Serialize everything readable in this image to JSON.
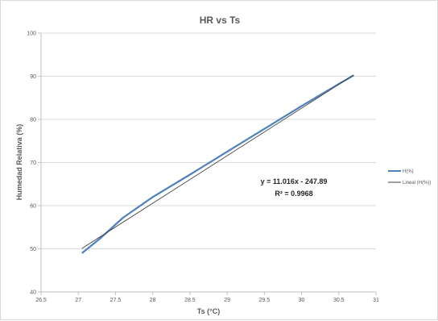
{
  "chart_data": {
    "type": "line",
    "title": "HR vs Ts",
    "xlabel": "Ts (°C)",
    "ylabel": "Humedad Relativa (%)",
    "xlim": [
      26.5,
      31
    ],
    "ylim": [
      40,
      100
    ],
    "x_ticks": [
      "26.5",
      "27",
      "27.5",
      "28",
      "28.5",
      "29",
      "29.5",
      "30",
      "30.5",
      "31"
    ],
    "y_ticks": [
      "40",
      "50",
      "60",
      "70",
      "80",
      "90",
      "100"
    ],
    "grid": "horizontal",
    "legend_position": "right",
    "series": [
      {
        "name": "H(%)",
        "color": "#4f81bd",
        "x": [
          27.05,
          27.3,
          27.6,
          28.0,
          28.5,
          29.0,
          29.5,
          30.0,
          30.5,
          30.7
        ],
        "y": [
          49,
          52.5,
          57.2,
          62,
          67.2,
          72.5,
          77.8,
          83.1,
          88.2,
          90.2
        ]
      },
      {
        "name": "Lineal (H(%))",
        "color": "#404040",
        "type": "trendline",
        "slope": 11.016,
        "intercept": -247.89,
        "x_range": [
          27.05,
          30.7
        ]
      }
    ],
    "annotations": {
      "equation": "y = 11.016x - 247.89",
      "r_squared": "R² = 0.9968"
    }
  }
}
